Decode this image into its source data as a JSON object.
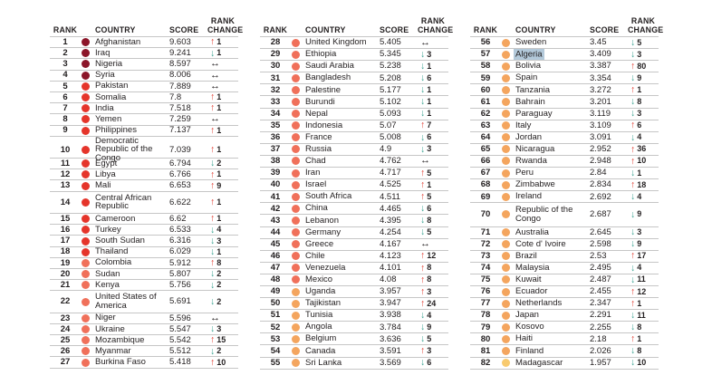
{
  "headers": {
    "rank": "RANK",
    "country": "COUNTRY",
    "score": "SCORE",
    "rank_change": "RANK CHANGE"
  },
  "icons": {
    "up": "↑",
    "down": "↓",
    "same": "↔"
  },
  "colors": {
    "bands": {
      "very_high": "#8c1529",
      "high": "#e5352b",
      "medium": "#f0705a",
      "low": "#f4a55e",
      "very_low": "#f8ca6e"
    },
    "up_arrow": "#e0392d",
    "down_arrow": "#3aa392",
    "same_arrow": "#231f20",
    "selection_highlight": "#b3c9da",
    "row_line": "#c6c6c6"
  },
  "table": {
    "columns": [
      {
        "rows": [
          {
            "rank": "1",
            "country": "Afghanistan",
            "score": "9.603",
            "dir": "up",
            "change": "1"
          },
          {
            "rank": "2",
            "country": "Iraq",
            "score": "9.241",
            "dir": "down",
            "change": "1"
          },
          {
            "rank": "3",
            "country": "Nigeria",
            "score": "8.597",
            "dir": "same",
            "change": ""
          },
          {
            "rank": "4",
            "country": "Syria",
            "score": "8.006",
            "dir": "same",
            "change": ""
          },
          {
            "rank": "5",
            "country": "Pakistan",
            "score": "7.889",
            "dir": "same",
            "change": ""
          },
          {
            "rank": "6",
            "country": "Somalia",
            "score": "7.8",
            "dir": "up",
            "change": "1"
          },
          {
            "rank": "7",
            "country": "India",
            "score": "7.518",
            "dir": "up",
            "change": "1"
          },
          {
            "rank": "8",
            "country": "Yemen",
            "score": "7.259",
            "dir": "same",
            "change": ""
          },
          {
            "rank": "9",
            "country": "Philippines",
            "score": "7.137",
            "dir": "up",
            "change": "1"
          },
          {
            "rank": "10",
            "country": "Democratic Republic of the Congo",
            "score": "7.039",
            "dir": "up",
            "change": "1",
            "wrap": true
          },
          {
            "rank": "11",
            "country": "Egypt",
            "score": "6.794",
            "dir": "down",
            "change": "2"
          },
          {
            "rank": "12",
            "country": "Libya",
            "score": "6.766",
            "dir": "up",
            "change": "1"
          },
          {
            "rank": "13",
            "country": "Mali",
            "score": "6.653",
            "dir": "up",
            "change": "9"
          },
          {
            "rank": "14",
            "country": "Central African Republic",
            "score": "6.622",
            "dir": "up",
            "change": "1",
            "wrap": true
          },
          {
            "rank": "15",
            "country": "Cameroon",
            "score": "6.62",
            "dir": "up",
            "change": "1"
          },
          {
            "rank": "16",
            "country": "Turkey",
            "score": "6.533",
            "dir": "down",
            "change": "4"
          },
          {
            "rank": "17",
            "country": "South Sudan",
            "score": "6.316",
            "dir": "down",
            "change": "3"
          },
          {
            "rank": "18",
            "country": "Thailand",
            "score": "6.029",
            "dir": "down",
            "change": "1"
          },
          {
            "rank": "19",
            "country": "Colombia",
            "score": "5.912",
            "dir": "up",
            "change": "8"
          },
          {
            "rank": "20",
            "country": "Sudan",
            "score": "5.807",
            "dir": "down",
            "change": "2"
          },
          {
            "rank": "21",
            "country": "Kenya",
            "score": "5.756",
            "dir": "down",
            "change": "2"
          },
          {
            "rank": "22",
            "country": "United States of America",
            "score": "5.691",
            "dir": "down",
            "change": "2",
            "wrap": true
          },
          {
            "rank": "23",
            "country": "Niger",
            "score": "5.596",
            "dir": "same",
            "change": ""
          },
          {
            "rank": "24",
            "country": "Ukraine",
            "score": "5.547",
            "dir": "down",
            "change": "3"
          },
          {
            "rank": "25",
            "country": "Mozambique",
            "score": "5.542",
            "dir": "up",
            "change": "15"
          },
          {
            "rank": "26",
            "country": "Myanmar",
            "score": "5.512",
            "dir": "down",
            "change": "2"
          },
          {
            "rank": "27",
            "country": "Burkina Faso",
            "score": "5.418",
            "dir": "up",
            "change": "10"
          }
        ]
      },
      {
        "rows": [
          {
            "rank": "28",
            "country": "United Kingdom",
            "score": "5.405",
            "dir": "same",
            "change": ""
          },
          {
            "rank": "29",
            "country": "Ethiopia",
            "score": "5.345",
            "dir": "down",
            "change": "3"
          },
          {
            "rank": "30",
            "country": "Saudi Arabia",
            "score": "5.238",
            "dir": "down",
            "change": "1"
          },
          {
            "rank": "31",
            "country": "Bangladesh",
            "score": "5.208",
            "dir": "down",
            "change": "6"
          },
          {
            "rank": "32",
            "country": "Palestine",
            "score": "5.177",
            "dir": "down",
            "change": "1"
          },
          {
            "rank": "33",
            "country": "Burundi",
            "score": "5.102",
            "dir": "down",
            "change": "1"
          },
          {
            "rank": "34",
            "country": "Nepal",
            "score": "5.093",
            "dir": "down",
            "change": "1"
          },
          {
            "rank": "35",
            "country": "Indonesia",
            "score": "5.07",
            "dir": "up",
            "change": "7"
          },
          {
            "rank": "36",
            "country": "France",
            "score": "5.008",
            "dir": "down",
            "change": "6"
          },
          {
            "rank": "37",
            "country": "Russia",
            "score": "4.9",
            "dir": "down",
            "change": "3"
          },
          {
            "rank": "38",
            "country": "Chad",
            "score": "4.762",
            "dir": "same",
            "change": ""
          },
          {
            "rank": "39",
            "country": "Iran",
            "score": "4.717",
            "dir": "up",
            "change": "5"
          },
          {
            "rank": "40",
            "country": "Israel",
            "score": "4.525",
            "dir": "up",
            "change": "1"
          },
          {
            "rank": "41",
            "country": "South Africa",
            "score": "4.511",
            "dir": "up",
            "change": "5"
          },
          {
            "rank": "42",
            "country": "China",
            "score": "4.465",
            "dir": "down",
            "change": "6"
          },
          {
            "rank": "43",
            "country": "Lebanon",
            "score": "4.395",
            "dir": "down",
            "change": "8"
          },
          {
            "rank": "44",
            "country": "Germany",
            "score": "4.254",
            "dir": "down",
            "change": "5"
          },
          {
            "rank": "45",
            "country": "Greece",
            "score": "4.167",
            "dir": "same",
            "change": ""
          },
          {
            "rank": "46",
            "country": "Chile",
            "score": "4.123",
            "dir": "up",
            "change": "12"
          },
          {
            "rank": "47",
            "country": "Venezuela",
            "score": "4.101",
            "dir": "up",
            "change": "8"
          },
          {
            "rank": "48",
            "country": "Mexico",
            "score": "4.08",
            "dir": "up",
            "change": "8"
          },
          {
            "rank": "49",
            "country": "Uganda",
            "score": "3.957",
            "dir": "up",
            "change": "3"
          },
          {
            "rank": "50",
            "country": "Tajikistan",
            "score": "3.947",
            "dir": "up",
            "change": "24"
          },
          {
            "rank": "51",
            "country": "Tunisia",
            "score": "3.938",
            "dir": "down",
            "change": "4"
          },
          {
            "rank": "52",
            "country": "Angola",
            "score": "3.784",
            "dir": "down",
            "change": "9"
          },
          {
            "rank": "53",
            "country": "Belgium",
            "score": "3.636",
            "dir": "down",
            "change": "5"
          },
          {
            "rank": "54",
            "country": "Canada",
            "score": "3.591",
            "dir": "up",
            "change": "3"
          },
          {
            "rank": "55",
            "country": "Sri Lanka",
            "score": "3.569",
            "dir": "down",
            "change": "6"
          }
        ]
      },
      {
        "rows": [
          {
            "rank": "56",
            "country": "Sweden",
            "score": "3.45",
            "dir": "down",
            "change": "5"
          },
          {
            "rank": "57",
            "country": "Algeria",
            "score": "3.409",
            "dir": "down",
            "change": "3",
            "highlighted": true
          },
          {
            "rank": "58",
            "country": "Bolivia",
            "score": "3.387",
            "dir": "up",
            "change": "80"
          },
          {
            "rank": "59",
            "country": "Spain",
            "score": "3.354",
            "dir": "down",
            "change": "9"
          },
          {
            "rank": "60",
            "country": "Tanzania",
            "score": "3.272",
            "dir": "up",
            "change": "1"
          },
          {
            "rank": "61",
            "country": "Bahrain",
            "score": "3.201",
            "dir": "down",
            "change": "8"
          },
          {
            "rank": "62",
            "country": "Paraguay",
            "score": "3.119",
            "dir": "down",
            "change": "3"
          },
          {
            "rank": "63",
            "country": "Italy",
            "score": "3.109",
            "dir": "up",
            "change": "6"
          },
          {
            "rank": "64",
            "country": "Jordan",
            "score": "3.091",
            "dir": "down",
            "change": "4"
          },
          {
            "rank": "65",
            "country": "Nicaragua",
            "score": "2.952",
            "dir": "up",
            "change": "36"
          },
          {
            "rank": "66",
            "country": "Rwanda",
            "score": "2.948",
            "dir": "up",
            "change": "10"
          },
          {
            "rank": "67",
            "country": "Peru",
            "score": "2.84",
            "dir": "down",
            "change": "1"
          },
          {
            "rank": "68",
            "country": "Zimbabwe",
            "score": "2.834",
            "dir": "up",
            "change": "18"
          },
          {
            "rank": "69",
            "country": "Ireland",
            "score": "2.692",
            "dir": "down",
            "change": "4"
          },
          {
            "rank": "70",
            "country": "Republic of the Congo",
            "score": "2.687",
            "dir": "down",
            "change": "9",
            "wrap": true
          },
          {
            "rank": "71",
            "country": "Australia",
            "score": "2.645",
            "dir": "down",
            "change": "3"
          },
          {
            "rank": "72",
            "country": "Cote d' Ivoire",
            "score": "2.598",
            "dir": "down",
            "change": "9"
          },
          {
            "rank": "73",
            "country": "Brazil",
            "score": "2.53",
            "dir": "up",
            "change": "17"
          },
          {
            "rank": "74",
            "country": "Malaysia",
            "score": "2.495",
            "dir": "down",
            "change": "4"
          },
          {
            "rank": "75",
            "country": "Kuwait",
            "score": "2.487",
            "dir": "down",
            "change": "11"
          },
          {
            "rank": "76",
            "country": "Ecuador",
            "score": "2.455",
            "dir": "up",
            "change": "12"
          },
          {
            "rank": "77",
            "country": "Netherlands",
            "score": "2.347",
            "dir": "up",
            "change": "1"
          },
          {
            "rank": "78",
            "country": "Japan",
            "score": "2.291",
            "dir": "down",
            "change": "11"
          },
          {
            "rank": "79",
            "country": "Kosovo",
            "score": "2.255",
            "dir": "down",
            "change": "8"
          },
          {
            "rank": "80",
            "country": "Haiti",
            "score": "2.18",
            "dir": "up",
            "change": "1"
          },
          {
            "rank": "81",
            "country": "Finland",
            "score": "2.026",
            "dir": "down",
            "change": "8"
          },
          {
            "rank": "82",
            "country": "Madagascar",
            "score": "1.957",
            "dir": "down",
            "change": "10"
          }
        ]
      }
    ]
  }
}
